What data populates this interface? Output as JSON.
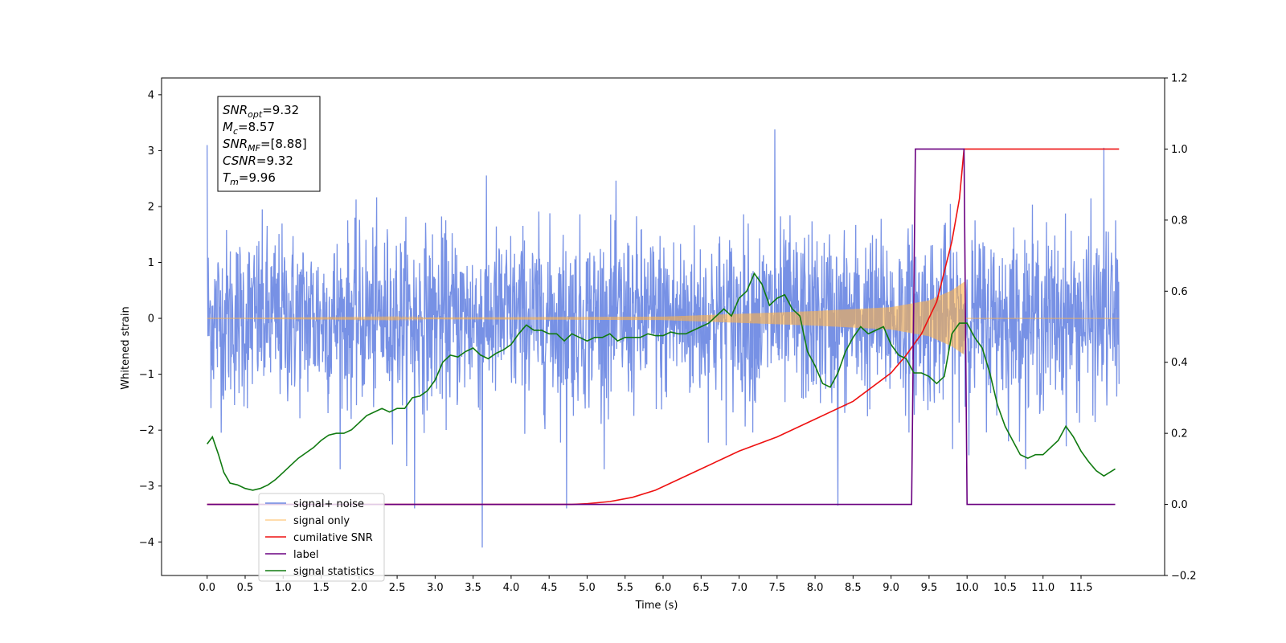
{
  "chart_data": {
    "type": "line",
    "title": "",
    "xlabel": "Time (s)",
    "ylabel": "Whitened strain",
    "y2label": "",
    "xlim": [
      -0.6,
      12.6
    ],
    "ylim": [
      -4.6,
      4.3
    ],
    "y2lim": [
      -0.2,
      1.2
    ],
    "x_ticks": [
      "0.0",
      "0.5",
      "1.0",
      "1.5",
      "2.0",
      "2.5",
      "3.0",
      "3.5",
      "4.0",
      "4.5",
      "5.0",
      "5.5",
      "6.0",
      "6.5",
      "7.0",
      "7.5",
      "8.0",
      "8.5",
      "9.0",
      "9.5",
      "10.0",
      "10.5",
      "11.0",
      "11.5"
    ],
    "y_ticks": [
      "4",
      "3",
      "2",
      "1",
      "0",
      "−1",
      "−2",
      "−3",
      "−4"
    ],
    "y2_ticks": [
      "1.2",
      "1.0",
      "0.8",
      "0.6",
      "0.4",
      "0.2",
      "0.0",
      "−0.2"
    ],
    "grid": false,
    "legend_position": "lower-left",
    "info_box": {
      "lines": [
        {
          "var": "SNR",
          "sub": "opt",
          "value": "=9.32"
        },
        {
          "var": "M",
          "sub": "c",
          "value": "=8.57"
        },
        {
          "var": "SNR",
          "sub": "MF",
          "value": "=[8.88]"
        },
        {
          "var": "CSNR",
          "sub": "",
          "value": "=9.32"
        },
        {
          "var": "T",
          "sub": "m",
          "value": "=9.96"
        }
      ]
    },
    "series": [
      {
        "name": "signal+ noise",
        "color": "#6b88e3",
        "axis": "left",
        "style": "noise",
        "x_range": [
          0.0,
          12.0
        ],
        "amplitude_typical": 1.3,
        "notable_peaks": [
          [
            0.0,
            3.1
          ],
          [
            3.62,
            -4.1
          ],
          [
            7.47,
            3.38
          ],
          [
            2.73,
            -3.4
          ],
          [
            4.73,
            -3.4
          ],
          [
            8.3,
            -3.35
          ],
          [
            11.8,
            3.05
          ]
        ]
      },
      {
        "name": "signal only",
        "color": "#ffb347",
        "axis": "left",
        "style": "chirp",
        "x_range": [
          0.0,
          12.0
        ],
        "merger_time": 9.96,
        "envelope": {
          "x": [
            0.0,
            6.0,
            7.0,
            8.0,
            9.0,
            9.5,
            9.8,
            9.96,
            10.0,
            12.0
          ],
          "y": [
            0.0,
            0.03,
            0.08,
            0.13,
            0.2,
            0.32,
            0.5,
            0.65,
            0.0,
            0.0
          ]
        }
      },
      {
        "name": "cumilative SNR",
        "color": "#ee1111",
        "axis": "right",
        "x": [
          0.0,
          4.5,
          4.8,
          5.0,
          5.3,
          5.6,
          5.9,
          6.2,
          6.5,
          6.8,
          7.0,
          7.5,
          8.0,
          8.5,
          9.0,
          9.2,
          9.4,
          9.6,
          9.8,
          9.9,
          9.96,
          10.0,
          12.0
        ],
        "values": [
          0.0,
          0.0,
          0.0,
          0.002,
          0.008,
          0.02,
          0.04,
          0.07,
          0.1,
          0.13,
          0.15,
          0.19,
          0.24,
          0.29,
          0.37,
          0.42,
          0.48,
          0.57,
          0.74,
          0.86,
          1.0,
          1.0,
          1.0
        ]
      },
      {
        "name": "label",
        "color": "#6a0080",
        "axis": "right",
        "x": [
          0.0,
          9.27,
          9.32,
          9.96,
          10.0,
          11.95
        ],
        "values": [
          0.0,
          0.0,
          1.0,
          1.0,
          0.0,
          0.0
        ]
      },
      {
        "name": "signal statistics",
        "color": "#107a10",
        "axis": "right",
        "x": [
          0.0,
          0.07,
          0.15,
          0.22,
          0.3,
          0.4,
          0.5,
          0.6,
          0.7,
          0.8,
          0.9,
          1.0,
          1.1,
          1.2,
          1.3,
          1.4,
          1.5,
          1.6,
          1.7,
          1.8,
          1.9,
          2.0,
          2.1,
          2.2,
          2.3,
          2.4,
          2.5,
          2.6,
          2.7,
          2.8,
          2.9,
          3.0,
          3.1,
          3.2,
          3.3,
          3.4,
          3.5,
          3.6,
          3.7,
          3.8,
          3.9,
          4.0,
          4.1,
          4.2,
          4.3,
          4.4,
          4.5,
          4.6,
          4.7,
          4.8,
          4.9,
          5.0,
          5.1,
          5.2,
          5.3,
          5.4,
          5.5,
          5.6,
          5.7,
          5.8,
          5.9,
          6.0,
          6.1,
          6.2,
          6.3,
          6.4,
          6.5,
          6.6,
          6.7,
          6.8,
          6.9,
          7.0,
          7.1,
          7.2,
          7.3,
          7.4,
          7.5,
          7.6,
          7.7,
          7.8,
          7.9,
          8.0,
          8.1,
          8.2,
          8.3,
          8.4,
          8.5,
          8.6,
          8.7,
          8.8,
          8.9,
          9.0,
          9.1,
          9.2,
          9.3,
          9.4,
          9.5,
          9.6,
          9.7,
          9.8,
          9.9,
          10.0,
          10.1,
          10.2,
          10.3,
          10.4,
          10.5,
          10.6,
          10.7,
          10.8,
          10.9,
          11.0,
          11.1,
          11.2,
          11.3,
          11.4,
          11.5,
          11.6,
          11.7,
          11.8,
          11.95
        ],
        "values": [
          0.17,
          0.19,
          0.14,
          0.09,
          0.06,
          0.055,
          0.045,
          0.04,
          0.045,
          0.055,
          0.07,
          0.09,
          0.11,
          0.13,
          0.145,
          0.16,
          0.18,
          0.195,
          0.2,
          0.2,
          0.21,
          0.23,
          0.25,
          0.26,
          0.27,
          0.26,
          0.27,
          0.27,
          0.3,
          0.305,
          0.32,
          0.35,
          0.4,
          0.42,
          0.415,
          0.43,
          0.44,
          0.42,
          0.41,
          0.425,
          0.435,
          0.45,
          0.48,
          0.505,
          0.49,
          0.49,
          0.48,
          0.48,
          0.46,
          0.48,
          0.47,
          0.46,
          0.47,
          0.47,
          0.48,
          0.46,
          0.47,
          0.47,
          0.47,
          0.48,
          0.475,
          0.475,
          0.485,
          0.48,
          0.48,
          0.49,
          0.5,
          0.51,
          0.53,
          0.55,
          0.53,
          0.58,
          0.6,
          0.65,
          0.62,
          0.56,
          0.58,
          0.59,
          0.55,
          0.53,
          0.43,
          0.39,
          0.34,
          0.33,
          0.37,
          0.43,
          0.47,
          0.5,
          0.48,
          0.49,
          0.5,
          0.45,
          0.42,
          0.41,
          0.37,
          0.37,
          0.36,
          0.34,
          0.36,
          0.48,
          0.51,
          0.51,
          0.47,
          0.44,
          0.37,
          0.28,
          0.22,
          0.18,
          0.14,
          0.13,
          0.14,
          0.14,
          0.16,
          0.18,
          0.22,
          0.19,
          0.15,
          0.12,
          0.095,
          0.08,
          0.1
        ]
      }
    ]
  }
}
